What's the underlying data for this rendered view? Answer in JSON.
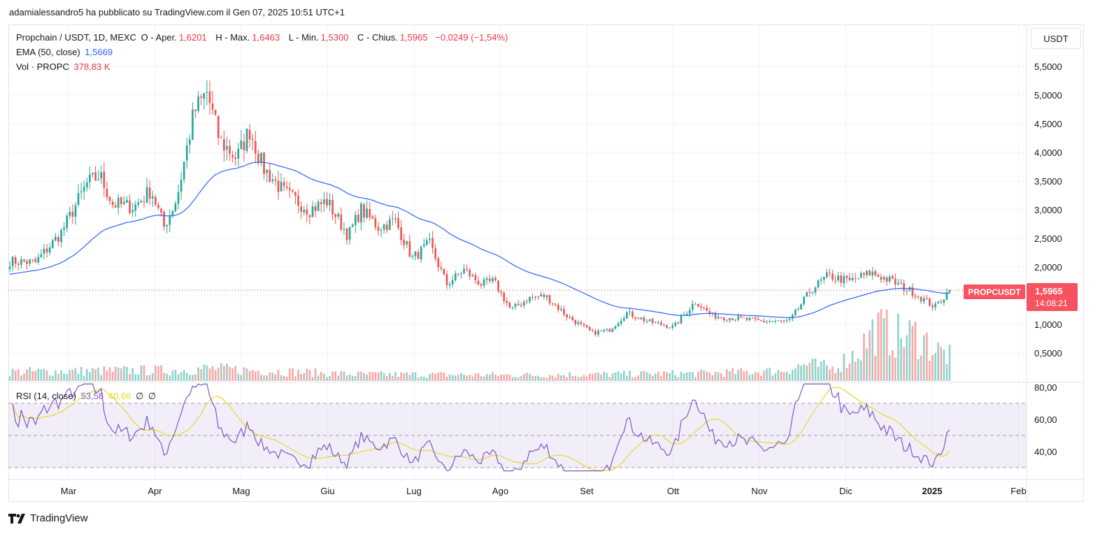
{
  "header": {
    "published_by": "adamialessandro5 ha pubblicato su TradingView.com il Gen 07, 2025 10:51 UTC+1"
  },
  "legend": {
    "symbol": "Propchain / USDT, 1D, MEXC",
    "open_label": "O - Aper.",
    "open": "1,6201",
    "high_label": "H - Max.",
    "high": "1,6463",
    "low_label": "L - Min.",
    "low": "1,5300",
    "close_label": "C - Chius.",
    "close": "1,5965",
    "change": "−0,0249 (−1,54%)",
    "ema_label": "EMA (50, close)",
    "ema_value": "1,5669",
    "vol_label": "Vol · PROPC",
    "vol_value": "378,83 K",
    "rsi_label": "RSI (14, close)",
    "rsi_value": "53,58",
    "rsi_ma": "40,66",
    "rsi_extra1": "∅",
    "rsi_extra2": "∅"
  },
  "currency_button": "USDT",
  "last_price": {
    "symbol": "PROPCUSDT",
    "price": "1,5965",
    "countdown": "14:08:21"
  },
  "brand": {
    "name": "TradingView"
  },
  "colors": {
    "up": "#26a69a",
    "down": "#ef5350",
    "ema": "#2962ff",
    "rsi": "#7e57c2",
    "rsi_ma": "#e9d62f"
  },
  "chart_data": [
    {
      "type": "candlestick",
      "x_axis_labels": [
        "Mar",
        "Apr",
        "Mag",
        "Giu",
        "Lug",
        "Ago",
        "Set",
        "Ott",
        "Nov",
        "Dic",
        "2025",
        "Feb"
      ],
      "y_tick_labels": [
        "5,5000",
        "5,0000",
        "4,5000",
        "4,0000",
        "3,5000",
        "3,0000",
        "2,5000",
        "2,0000",
        "1,0000",
        "0,5000"
      ],
      "y_ticks": [
        5.5,
        5.0,
        4.5,
        4.0,
        3.5,
        3.0,
        2.5,
        2.0,
        1.0,
        0.5
      ],
      "ylim": [
        0.0,
        5.85
      ],
      "close_anchors": [
        {
          "month": 0.0,
          "close": 2.1
        },
        {
          "month": 0.3,
          "close": 2.08
        },
        {
          "month": 0.6,
          "close": 2.6
        },
        {
          "month": 0.9,
          "close": 3.45
        },
        {
          "month": 1.05,
          "close": 3.6
        },
        {
          "month": 1.2,
          "close": 3.1
        },
        {
          "month": 1.45,
          "close": 3.05
        },
        {
          "month": 1.65,
          "close": 3.35
        },
        {
          "month": 1.8,
          "close": 2.7
        },
        {
          "month": 1.95,
          "close": 3.2
        },
        {
          "month": 2.15,
          "close": 4.7
        },
        {
          "month": 2.3,
          "close": 5.05
        },
        {
          "month": 2.45,
          "close": 4.2
        },
        {
          "month": 2.65,
          "close": 3.9
        },
        {
          "month": 2.8,
          "close": 4.4
        },
        {
          "month": 2.95,
          "close": 3.75
        },
        {
          "month": 3.2,
          "close": 3.3
        },
        {
          "month": 3.5,
          "close": 3.0
        },
        {
          "month": 3.7,
          "close": 3.15
        },
        {
          "month": 3.95,
          "close": 2.55
        },
        {
          "month": 4.1,
          "close": 3.0
        },
        {
          "month": 4.3,
          "close": 2.7
        },
        {
          "month": 4.5,
          "close": 2.8
        },
        {
          "month": 4.7,
          "close": 2.15
        },
        {
          "month": 4.9,
          "close": 2.4
        },
        {
          "month": 5.1,
          "close": 1.7
        },
        {
          "month": 5.3,
          "close": 1.95
        },
        {
          "month": 5.5,
          "close": 1.7
        },
        {
          "month": 5.65,
          "close": 1.75
        },
        {
          "month": 5.85,
          "close": 1.25
        },
        {
          "month": 6.05,
          "close": 1.45
        },
        {
          "month": 6.25,
          "close": 1.5
        },
        {
          "month": 6.5,
          "close": 1.15
        },
        {
          "month": 6.8,
          "close": 0.85
        },
        {
          "month": 7.0,
          "close": 0.9
        },
        {
          "month": 7.2,
          "close": 1.2
        },
        {
          "month": 7.45,
          "close": 1.05
        },
        {
          "month": 7.75,
          "close": 0.95
        },
        {
          "month": 8.0,
          "close": 1.4
        },
        {
          "month": 8.2,
          "close": 1.15
        },
        {
          "month": 8.5,
          "close": 1.1
        },
        {
          "month": 8.8,
          "close": 1.05
        },
        {
          "month": 9.1,
          "close": 1.05
        },
        {
          "month": 9.35,
          "close": 1.6
        },
        {
          "month": 9.55,
          "close": 1.85
        },
        {
          "month": 9.8,
          "close": 1.75
        },
        {
          "month": 10.05,
          "close": 1.9
        },
        {
          "month": 10.3,
          "close": 1.75
        },
        {
          "month": 10.55,
          "close": 1.55
        },
        {
          "month": 10.8,
          "close": 1.3
        },
        {
          "month": 10.97,
          "close": 1.5965
        }
      ],
      "ema_label": "EMA (50, close)",
      "last_price": 1.5965
    },
    {
      "type": "bar",
      "name": "Vol · PROPC",
      "volume_anchors": [
        {
          "month": 0.0,
          "vol": 0.22
        },
        {
          "month": 2.0,
          "vol": 0.26
        },
        {
          "month": 2.3,
          "vol": 0.3
        },
        {
          "month": 4.0,
          "vol": 0.16
        },
        {
          "month": 6.0,
          "vol": 0.14
        },
        {
          "month": 8.0,
          "vol": 0.18
        },
        {
          "month": 9.0,
          "vol": 0.24
        },
        {
          "month": 9.3,
          "vol": 0.4
        },
        {
          "month": 9.6,
          "vol": 0.3
        },
        {
          "month": 9.9,
          "vol": 0.7
        },
        {
          "month": 10.1,
          "vol": 1.25
        },
        {
          "month": 10.4,
          "vol": 1.05
        },
        {
          "month": 10.6,
          "vol": 1.1
        },
        {
          "month": 10.8,
          "vol": 0.75
        },
        {
          "month": 10.97,
          "vol": 0.6
        }
      ]
    },
    {
      "type": "line",
      "name": "RSI (14, close)",
      "y_tick_labels": [
        "80,00",
        "60,00",
        "40,00"
      ],
      "y_ticks": [
        80,
        60,
        40
      ],
      "ylim": [
        24,
        84
      ],
      "band": [
        30,
        70
      ],
      "midline": 50,
      "last_value": 53.58,
      "ma_last_value": 40.66
    }
  ]
}
